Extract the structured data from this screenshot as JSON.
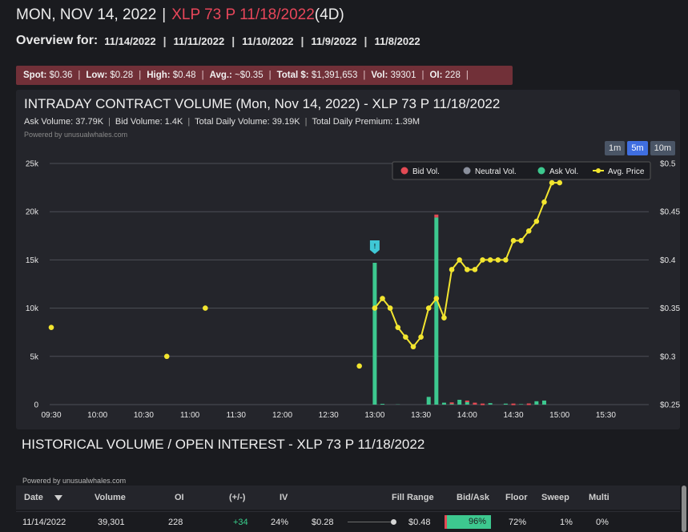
{
  "header": {
    "date": "MON, NOV 14, 2022",
    "separator": "|",
    "contract": "XLP 73 P 11/18/2022",
    "dte": "(4D)"
  },
  "overview": {
    "label": "Overview for:",
    "dates": [
      "11/14/2022",
      "11/11/2022",
      "11/10/2022",
      "11/9/2022",
      "11/8/2022"
    ]
  },
  "stats": {
    "spot_label": "Spot:",
    "spot": "$0.36",
    "low_label": "Low:",
    "low": "$0.28",
    "high_label": "High:",
    "high": "$0.48",
    "avg_label": "Avg.:",
    "avg": "~$0.35",
    "total_label": "Total $:",
    "total": "$1,391,653",
    "vol_label": "Vol:",
    "vol": "39301",
    "oi_label": "OI:",
    "oi": "228"
  },
  "intraday": {
    "title": "INTRADAY CONTRACT VOLUME (Mon, Nov 14, 2022) - XLP 73 P 11/18/2022",
    "ask_volume": "Ask Volume: 37.79K",
    "bid_volume": "Bid Volume: 1.4K",
    "total_daily_volume": "Total Daily Volume: 39.19K",
    "total_daily_premium": "Total Daily Premium: 1.39M",
    "powered_by": "Powered by unusualwhales.com",
    "timeframes": [
      "1m",
      "5m",
      "10m"
    ],
    "active_timeframe": "5m"
  },
  "colors": {
    "bid": "#e34a54",
    "neutral": "#8a8f9c",
    "ask": "#3dc88f",
    "price": "#f2e52f",
    "contract": "#e8465a"
  },
  "chart_data": {
    "type": "bar",
    "title": "INTRADAY CONTRACT VOLUME (Mon, Nov 14, 2022) - XLP 73 P 11/18/2022",
    "x_ticks": [
      "09:30",
      "10:00",
      "10:30",
      "11:00",
      "11:30",
      "12:00",
      "12:30",
      "13:00",
      "13:30",
      "14:00",
      "14:30",
      "15:00",
      "15:30"
    ],
    "y_left_ticks": [
      "0",
      "5k",
      "10k",
      "15k",
      "20k",
      "25k"
    ],
    "y_left_range": [
      0,
      25000
    ],
    "y_right_ticks": [
      "$0.25",
      "$0.3",
      "$0.35",
      "$0.4",
      "$0.45",
      "$0.5"
    ],
    "y_right_range": [
      0.25,
      0.5
    ],
    "legend": [
      "Bid Vol.",
      "Neutral Vol.",
      "Ask Vol.",
      "Avg. Price"
    ],
    "legend_position": "top-right",
    "marker_label": "!",
    "marker_minute": 210,
    "bar_series": {
      "minute": [
        215,
        225,
        245,
        250,
        255,
        260,
        265,
        270,
        275,
        280,
        285,
        295,
        300,
        305,
        310,
        315,
        320
      ],
      "ask": [
        80,
        20,
        800,
        19400,
        200,
        80,
        500,
        300,
        0,
        30,
        150,
        100,
        20,
        50,
        0,
        350,
        420
      ],
      "bid": [
        0,
        0,
        0,
        300,
        0,
        150,
        0,
        120,
        200,
        80,
        0,
        0,
        90,
        0,
        120,
        0,
        0
      ],
      "neutral": [
        0,
        0,
        0,
        0,
        0,
        0,
        0,
        0,
        0,
        0,
        0,
        0,
        0,
        0,
        0,
        0,
        0
      ]
    },
    "ask_bar_13_05": {
      "minute": 210,
      "value": 14700
    },
    "avg_price": {
      "minute": [
        0,
        75,
        100,
        200,
        210,
        215,
        220,
        225,
        230,
        235,
        240,
        245,
        250,
        255,
        260,
        265,
        270,
        275,
        280,
        285,
        290,
        295,
        300,
        305,
        310,
        315,
        320,
        325,
        330
      ],
      "value": [
        0.33,
        0.3,
        0.35,
        0.29,
        0.35,
        0.36,
        0.35,
        0.33,
        0.32,
        0.31,
        0.32,
        0.35,
        0.36,
        0.34,
        0.39,
        0.4,
        0.39,
        0.39,
        0.4,
        0.4,
        0.4,
        0.4,
        0.42,
        0.42,
        0.43,
        0.44,
        0.46,
        0.48,
        0.48
      ]
    }
  },
  "historical": {
    "title": "HISTORICAL VOLUME / OPEN INTEREST - XLP 73 P 11/18/2022",
    "powered_by": "Powered by unusualwhales.com",
    "columns": [
      "Date",
      "Volume",
      "OI",
      "(+/-)",
      "IV",
      "Fill Range",
      "Bid/Ask",
      "Floor",
      "Sweep",
      "Multi"
    ],
    "rows": [
      {
        "date": "11/14/2022",
        "volume": "39,301",
        "oi": "228",
        "change": "+34",
        "iv": "24%",
        "fill_low": "$0.28",
        "fill_high": "$0.48",
        "bid_ask": "96%",
        "bid_ask_pct": 96,
        "floor": "72%",
        "sweep": "1%",
        "multi": "0%"
      }
    ]
  }
}
